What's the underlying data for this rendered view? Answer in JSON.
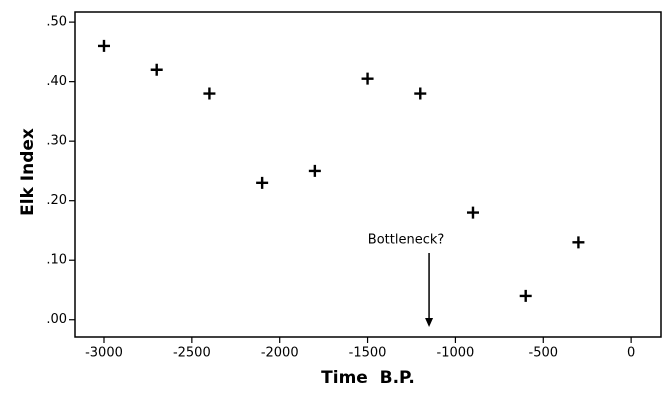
{
  "chart_data": {
    "type": "scatter",
    "x_label": "Time  B.P.",
    "y_label": "Elk Index",
    "x": [
      -3000,
      -2700,
      -2400,
      -2100,
      -1800,
      -1500,
      -1200,
      -900,
      -600,
      -300
    ],
    "series": [
      {
        "values": [
          0.46,
          0.42,
          0.38,
          0.23,
          0.25,
          0.405,
          0.38,
          0.18,
          0.04,
          0.13
        ],
        "color": "#000000"
      }
    ],
    "xlim": [
      -3165,
      170
    ],
    "ylim": [
      -0.029,
      0.517
    ],
    "xticks": [
      -3000,
      -2500,
      -2000,
      -1500,
      -1000,
      -500,
      0
    ],
    "yticks": [
      {
        "value": 0,
        "label": ".00"
      },
      {
        "value": 0.1,
        "label": ".10"
      },
      {
        "value": 0.2,
        "label": ".20"
      },
      {
        "value": 0.3,
        "label": ".30"
      },
      {
        "value": 0.4,
        "label": ".40"
      },
      {
        "value": 0.5,
        "label": ".50"
      }
    ],
    "annotations": [
      {
        "text": "Bottleneck?",
        "x": -1150
      }
    ]
  }
}
